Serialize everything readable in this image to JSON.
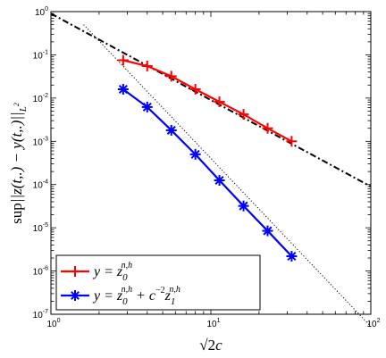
{
  "chart_data": {
    "type": "line",
    "xscale": "log",
    "yscale": "log",
    "xlim": [
      1,
      100
    ],
    "ylim": [
      1e-07,
      1
    ],
    "xlabel": "√2c",
    "ylabel": "sup||z(t,.) − y(t,.)||L²",
    "x_tick_labels": [
      "10^0",
      "10^1",
      "10^2"
    ],
    "y_tick_labels": [
      "10^-7",
      "10^-6",
      "10^-5",
      "10^-4",
      "10^-3",
      "10^-2",
      "10^-1",
      "10^0"
    ],
    "grid": false,
    "legend_position": "bottom-left",
    "series": [
      {
        "name": "y = z0^{n,h}",
        "color": "#ff0000",
        "marker": "plus",
        "x": [
          2.83,
          4.0,
          5.66,
          8.0,
          11.31,
          16.0,
          22.63,
          32.0
        ],
        "y": [
          0.075,
          0.055,
          0.032,
          0.016,
          0.0082,
          0.0042,
          0.002,
          0.001
        ]
      },
      {
        "name": "y = z0^{n,h} + c^-2 z1^{n,h}",
        "color": "#0000ff",
        "marker": "asterisk",
        "x": [
          2.83,
          4.0,
          5.66,
          8.0,
          11.31,
          16.0,
          22.63,
          32.0
        ],
        "y": [
          0.016,
          0.0062,
          0.0018,
          0.0005,
          0.000125,
          3.2e-05,
          8.5e-06,
          2.2e-06
        ]
      },
      {
        "name": "",
        "color": "#000000",
        "line_style": "dash-dot",
        "x": [
          1,
          100
        ],
        "y": [
          0.9,
          9e-05
        ]
      },
      {
        "name": "",
        "color": "#000000",
        "line_style": "dotted",
        "x": [
          1.6,
          100
        ],
        "y": [
          0.5,
          5.2e-08
        ]
      }
    ]
  },
  "legend": {
    "entries": [
      {
        "y_part": "y = ",
        "z_base": "z",
        "z_sub": "0",
        "z_sup": "n,h",
        "extra": ""
      },
      {
        "y_part": "y = ",
        "z_base": "z",
        "z_sub": "0",
        "z_sup": "n,h",
        "extra": " + c",
        "c_sup": "−2",
        "z2_base": "z",
        "z2_sub": "1",
        "z2_sup": "n,h"
      }
    ]
  }
}
